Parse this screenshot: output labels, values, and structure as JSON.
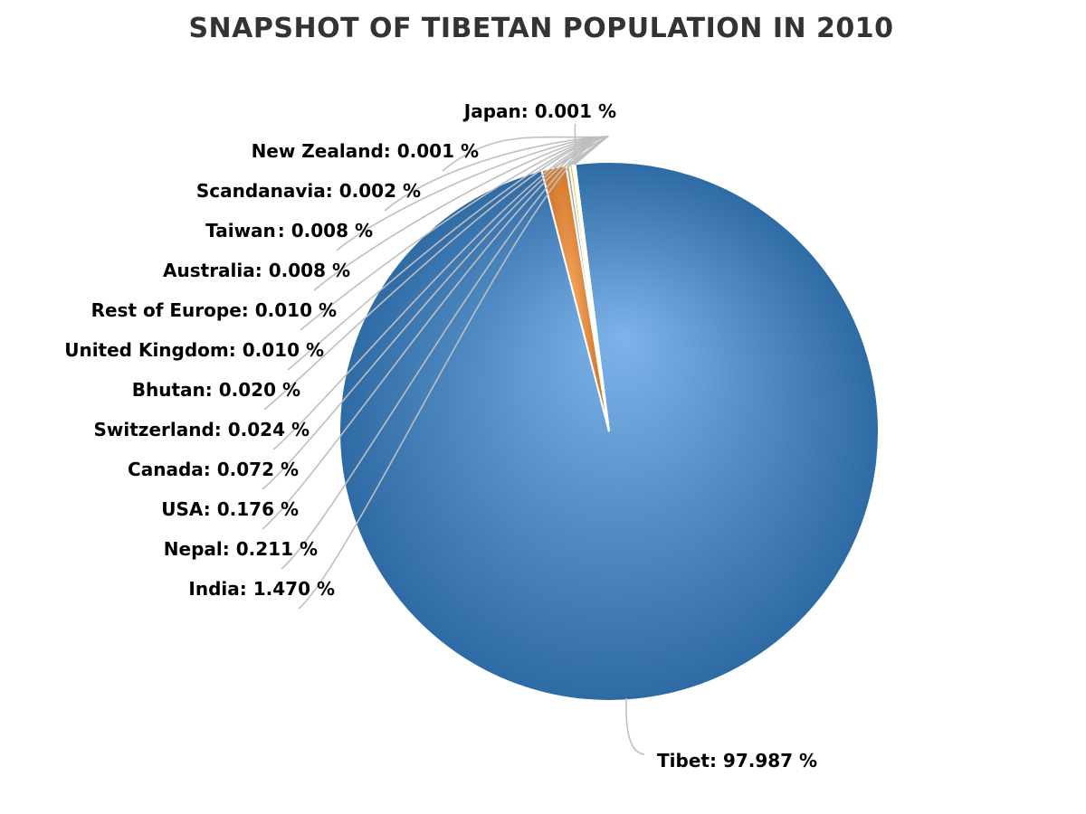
{
  "chart_data": {
    "type": "pie",
    "title": "SNAPSHOT OF TIBETAN POPULATION IN 2010",
    "slices": [
      {
        "name": "Tibet",
        "value": 97.987,
        "label": "Tibet: 97.987 %",
        "color": "#4a86c3"
      },
      {
        "name": "India",
        "value": 1.47,
        "label": "India: 1.470 %",
        "color": "#e58a3c"
      },
      {
        "name": "Nepal",
        "value": 0.211,
        "label": "Nepal: 0.211 %",
        "color": "#a5a5a5"
      },
      {
        "name": "USA",
        "value": 0.176,
        "label": "USA: 0.176 %",
        "color": "#f2c230"
      },
      {
        "name": "Canada",
        "value": 0.072,
        "label": "Canada: 0.072 %",
        "color": "#5b9bd5"
      },
      {
        "name": "Switzerland",
        "value": 0.024,
        "label": "Switzerland: 0.024 %",
        "color": "#6aaa45"
      },
      {
        "name": "Bhutan",
        "value": 0.02,
        "label": "Bhutan: 0.020 %",
        "color": "#26446e"
      },
      {
        "name": "United Kingdom",
        "value": 0.01,
        "label": "United Kingdom: 0.010 %",
        "color": "#9e480e"
      },
      {
        "name": "Rest of Europe",
        "value": 0.01,
        "label": "Rest of Europe: 0.010 %",
        "color": "#636363"
      },
      {
        "name": "Australia",
        "value": 0.008,
        "label": "Australia: 0.008 %",
        "color": "#997300"
      },
      {
        "name": "Taiwan",
        "value": 0.008,
        "label": "Taiwan : 0.008 %",
        "color": "#264478"
      },
      {
        "name": "Scandanavia",
        "value": 0.002,
        "label": "Scandanavia: 0.002 %",
        "color": "#43682b"
      },
      {
        "name": "New Zealand",
        "value": 0.001,
        "label": "New Zealand: 0.001 %",
        "color": "#7cafdd"
      },
      {
        "name": "Japan",
        "value": 0.001,
        "label": "Japan: 0.001 %",
        "color": "#f1975a"
      }
    ],
    "legend": "none",
    "data_labels": "outside-with-leader-lines"
  }
}
